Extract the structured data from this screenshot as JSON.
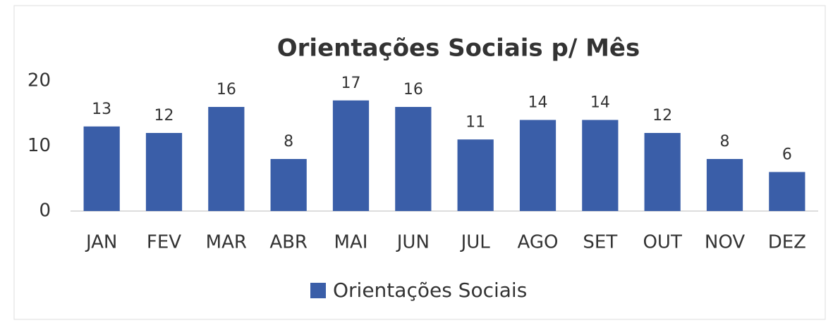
{
  "chart_data": {
    "type": "bar",
    "title": "Orientações Sociais p/ Mês",
    "categories": [
      "JAN",
      "FEV",
      "MAR",
      "ABR",
      "MAI",
      "JUN",
      "JUL",
      "AGO",
      "SET",
      "OUT",
      "NOV",
      "DEZ"
    ],
    "series": [
      {
        "name": "Orientações Sociais",
        "color": "#3a5ea8",
        "values": [
          13,
          12,
          16,
          8,
          17,
          16,
          11,
          14,
          14,
          12,
          8,
          6
        ]
      }
    ],
    "ylim": [
      0,
      20
    ],
    "yticks": [
      0,
      10,
      20
    ],
    "legend": "bottom"
  }
}
